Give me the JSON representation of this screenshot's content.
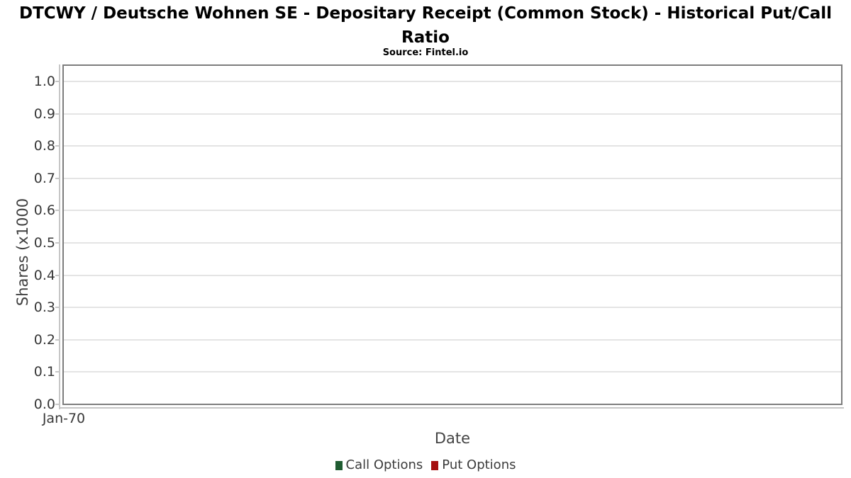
{
  "chart_data": {
    "type": "line",
    "title": "DTCWY / Deutsche Wohnen SE - Depositary Receipt (Common Stock) - Historical Put/Call Ratio",
    "subtitle": "Source: Fintel.io",
    "xlabel": "Date",
    "ylabel": "Shares (x1000",
    "x_ticks": [
      "Jan-70"
    ],
    "y_ticks": [
      "0.0",
      "0.1",
      "0.2",
      "0.3",
      "0.4",
      "0.5",
      "0.6",
      "0.7",
      "0.8",
      "0.9",
      "1.0"
    ],
    "ylim": [
      0,
      1.05
    ],
    "grid": "horizontal-only",
    "legend_position": "bottom-center",
    "plot_border_color": "#7d7d7d",
    "gridline_color": "#e4e4e4",
    "series": [
      {
        "name": "Call Options",
        "color": "#1f5c31",
        "x": [],
        "values": []
      },
      {
        "name": "Put Options",
        "color": "#a50f0f",
        "x": [],
        "values": []
      }
    ]
  }
}
